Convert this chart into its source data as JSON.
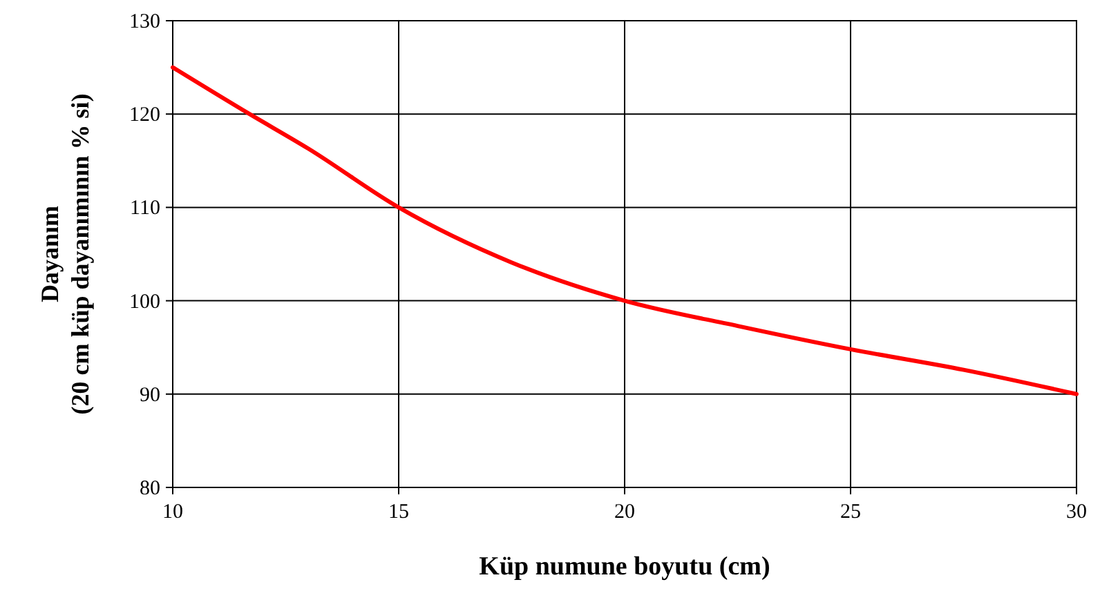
{
  "chart_data": {
    "type": "line",
    "xlabel": "Küp numune boyutu (cm)",
    "ylabel": "Dayanım\n(20 cm küp dayanımının % si)",
    "x": [
      10,
      11.7,
      13,
      15,
      17.5,
      20,
      22.5,
      25,
      27.5,
      30
    ],
    "series": [
      {
        "color": "#ff0000",
        "values": [
          125,
          120,
          116.3,
          110,
          104.1,
          100,
          97.3,
          94.8,
          92.6,
          90
        ]
      }
    ],
    "xlim": [
      10,
      30
    ],
    "xticks": [
      10,
      15,
      20,
      25,
      30
    ],
    "ylim": [
      80,
      130
    ],
    "yticks": [
      80,
      90,
      100,
      110,
      120,
      130
    ],
    "grid": true,
    "marker": "none",
    "line_style": "solid"
  }
}
